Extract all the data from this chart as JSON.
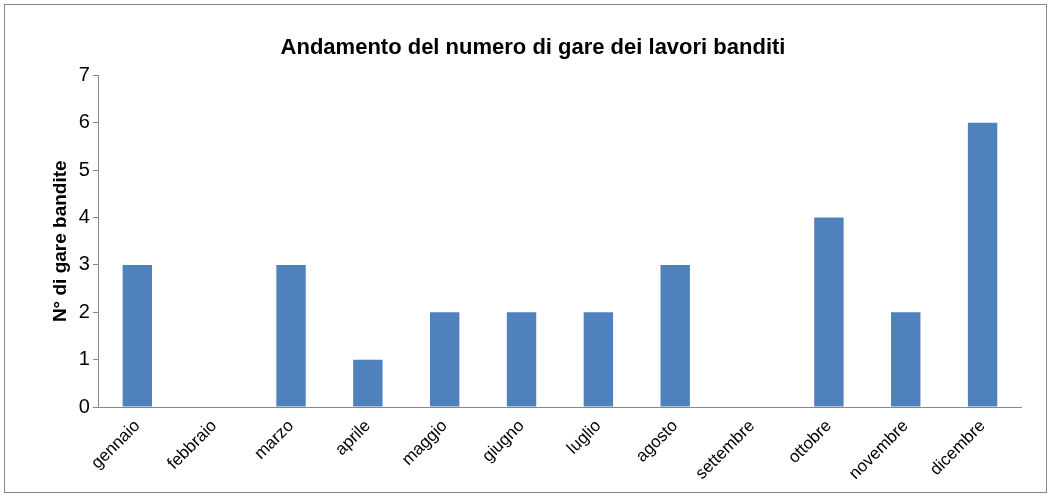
{
  "chart_data": {
    "type": "bar",
    "title": "Andamento del numero di gare dei lavori banditi",
    "ylabel": "N° di gare bandite",
    "categories": [
      "gennaio",
      "febbraio",
      "marzo",
      "aprile",
      "maggio",
      "giugno",
      "luglio",
      "agosto",
      "settembre",
      "ottobre",
      "novembre",
      "dicembre"
    ],
    "values": [
      3,
      0,
      3,
      1,
      2,
      2,
      2,
      3,
      0,
      4,
      2,
      6
    ],
    "color": "#4f81bd",
    "ylim": [
      0,
      7
    ],
    "yticks": [
      0,
      1,
      2,
      3,
      4,
      5,
      6,
      7
    ],
    "grid": false,
    "legend": false
  }
}
